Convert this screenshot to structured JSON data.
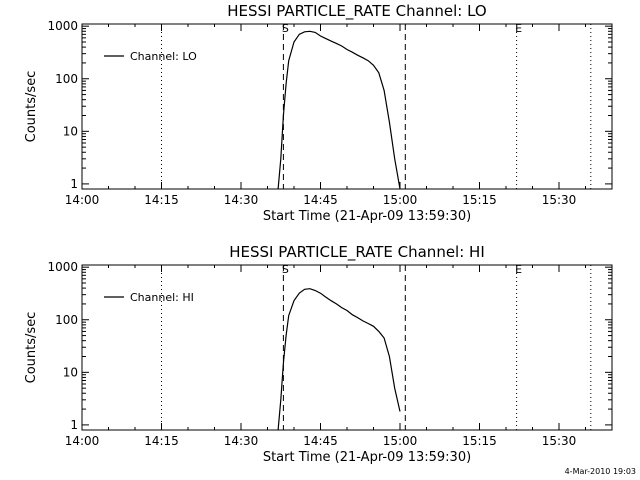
{
  "footer": {
    "timestamp": "4-Mar-2010 19:03"
  },
  "chart_data": [
    {
      "type": "line",
      "title": "HESSI PARTICLE_RATE Channel: LO",
      "xlabel": "Start Time (21-Apr-09 13:59:30)",
      "ylabel": "Counts/sec",
      "yscale": "log",
      "ylim": [
        0.8,
        1100
      ],
      "xlim": [
        "14:00",
        "15:40"
      ],
      "x_ticks": [
        "14:00",
        "14:15",
        "14:30",
        "14:45",
        "15:00",
        "15:15",
        "15:30"
      ],
      "y_ticks": [
        "1",
        "10",
        "100",
        "1000"
      ],
      "grid": false,
      "legend_position": "top-left",
      "markers": [
        {
          "label": "S",
          "time": "14:38",
          "style": "dashed"
        },
        {
          "label": "",
          "time": "15:01",
          "style": "dashed"
        },
        {
          "label": "E",
          "time": "15:22",
          "style": "dotted"
        }
      ],
      "dotted_lines": [
        "14:15",
        "15:36"
      ],
      "series": [
        {
          "name": "Channel: LO",
          "x": [
            "14:37",
            "14:37:30",
            "14:38",
            "14:38:30",
            "14:39",
            "14:40",
            "14:41",
            "14:42",
            "14:43",
            "14:44",
            "14:45",
            "14:46",
            "14:47",
            "14:48",
            "14:49",
            "14:50",
            "14:51",
            "14:52",
            "14:53",
            "14:54",
            "14:55",
            "14:56",
            "14:57",
            "14:58",
            "14:59",
            "15:00"
          ],
          "values": [
            0.8,
            3,
            20,
            80,
            220,
            500,
            700,
            780,
            800,
            760,
            650,
            580,
            520,
            470,
            420,
            360,
            320,
            280,
            250,
            220,
            180,
            130,
            60,
            15,
            3,
            0.8
          ]
        }
      ]
    },
    {
      "type": "line",
      "title": "HESSI PARTICLE_RATE Channel: HI",
      "xlabel": "Start Time (21-Apr-09 13:59:30)",
      "ylabel": "Counts/sec",
      "yscale": "log",
      "ylim": [
        0.8,
        1100
      ],
      "xlim": [
        "14:00",
        "15:40"
      ],
      "x_ticks": [
        "14:00",
        "14:15",
        "14:30",
        "14:45",
        "15:00",
        "15:15",
        "15:30"
      ],
      "y_ticks": [
        "1",
        "10",
        "100",
        "1000"
      ],
      "grid": false,
      "legend_position": "top-left",
      "markers": [
        {
          "label": "S",
          "time": "14:38",
          "style": "dashed"
        },
        {
          "label": "",
          "time": "15:01",
          "style": "dashed"
        },
        {
          "label": "E",
          "time": "15:22",
          "style": "dotted"
        }
      ],
      "dotted_lines": [
        "14:15",
        "15:36"
      ],
      "series": [
        {
          "name": "Channel: HI",
          "x": [
            "14:37",
            "14:37:30",
            "14:38",
            "14:38:30",
            "14:39",
            "14:40",
            "14:41",
            "14:42",
            "14:43",
            "14:44",
            "14:45",
            "14:46",
            "14:47",
            "14:48",
            "14:49",
            "14:50",
            "14:51",
            "14:52",
            "14:53",
            "14:54",
            "14:55",
            "14:56",
            "14:57",
            "14:58",
            "14:59",
            "15:00"
          ],
          "values": [
            0.8,
            3,
            15,
            50,
            120,
            230,
            320,
            380,
            390,
            360,
            320,
            270,
            230,
            200,
            170,
            150,
            125,
            110,
            95,
            85,
            75,
            60,
            45,
            20,
            5,
            1.8
          ]
        }
      ]
    }
  ]
}
